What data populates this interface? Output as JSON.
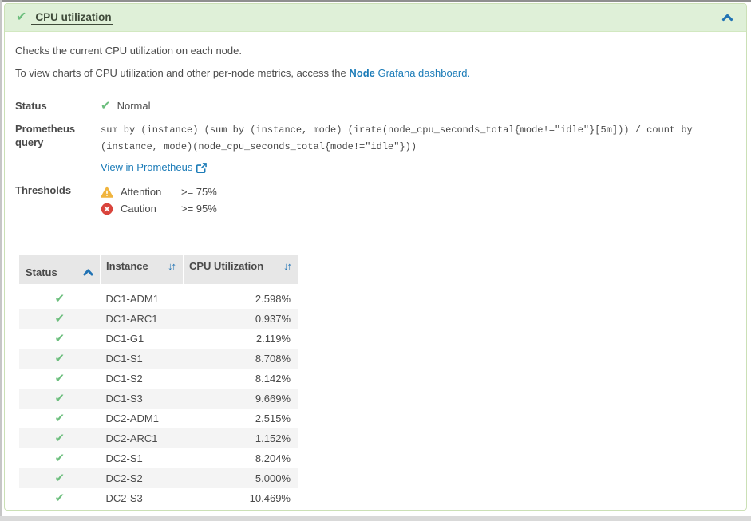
{
  "header": {
    "title": "CPU utilization",
    "status_icon": "check-icon",
    "collapse_icon": "chevron-up-icon"
  },
  "description": {
    "line1": "Checks the current CPU utilization on each node.",
    "line2_prefix": "To view charts of CPU utilization and other per-node metrics, access the ",
    "link_bold": "Node",
    "link_rest": " Grafana dashboard."
  },
  "status": {
    "label": "Status",
    "value": "Normal"
  },
  "prometheus": {
    "label": "Prometheus query",
    "query_line1": "sum by (instance) (sum by (instance, mode) (irate(node_cpu_seconds_total{mode!=\"idle\"}[5m])) / count by",
    "query_line2": "(instance, mode)(node_cpu_seconds_total{mode!=\"idle\"}))",
    "view_link": "View in Prometheus"
  },
  "thresholds": {
    "label": "Thresholds",
    "items": [
      {
        "severity": "attention",
        "name": "Attention",
        "value": ">= 75%"
      },
      {
        "severity": "caution",
        "name": "Caution",
        "value": ">= 95%"
      }
    ]
  },
  "table": {
    "columns": [
      "Status",
      "Instance",
      "CPU Utilization"
    ],
    "sort": {
      "column": "Status",
      "direction": "ascending"
    },
    "rows": [
      {
        "status": "normal",
        "instance": "DC1-ADM1",
        "cpu": "2.598%"
      },
      {
        "status": "normal",
        "instance": "DC1-ARC1",
        "cpu": "0.937%"
      },
      {
        "status": "normal",
        "instance": "DC1-G1",
        "cpu": "2.119%"
      },
      {
        "status": "normal",
        "instance": "DC1-S1",
        "cpu": "8.708%"
      },
      {
        "status": "normal",
        "instance": "DC1-S2",
        "cpu": "8.142%"
      },
      {
        "status": "normal",
        "instance": "DC1-S3",
        "cpu": "9.669%"
      },
      {
        "status": "normal",
        "instance": "DC2-ADM1",
        "cpu": "2.515%"
      },
      {
        "status": "normal",
        "instance": "DC2-ARC1",
        "cpu": "1.152%"
      },
      {
        "status": "normal",
        "instance": "DC2-S1",
        "cpu": "8.204%"
      },
      {
        "status": "normal",
        "instance": "DC2-S2",
        "cpu": "5.000%"
      },
      {
        "status": "normal",
        "instance": "DC2-S3",
        "cpu": "10.469%"
      }
    ]
  },
  "colors": {
    "panel_header_bg": "#dff0d8",
    "panel_border": "#cbe0b6",
    "success_green": "#6cbe7d",
    "link_blue": "#1c7cb8",
    "sort_blue": "#2173b4",
    "attention_amber": "#f0ad4e",
    "caution_red": "#d9443c",
    "table_header_bg": "#e7e7e7"
  }
}
